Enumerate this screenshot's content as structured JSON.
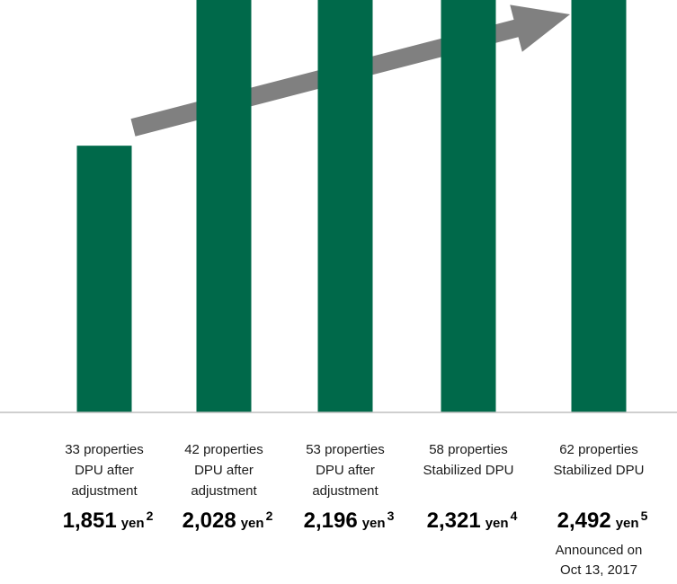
{
  "chart_data": {
    "type": "bar",
    "categories": [
      [
        "33 properties",
        "DPU after",
        "adjustment"
      ],
      [
        "42 properties",
        "DPU after",
        "adjustment"
      ],
      [
        "53 properties",
        "DPU after",
        "adjustment"
      ],
      [
        "58 properties",
        "Stabilized DPU"
      ],
      [
        "62 properties",
        "Stabilized DPU"
      ]
    ],
    "values": [
      1851,
      2028,
      2196,
      2321,
      2492
    ],
    "value_labels": [
      "1,851",
      "2,028",
      "2,196",
      "2,321",
      "2,492"
    ],
    "unit": "yen",
    "footnotes": [
      "2",
      "2",
      "3",
      "4",
      "5"
    ],
    "annotations": [
      {
        "category_index": 4,
        "lines": [
          "Announced on",
          "Oct 13, 2017"
        ]
      }
    ],
    "trend_arrow": true,
    "colors": {
      "bar": "#00694A",
      "arrow": "#808080",
      "axis": "#bfbfbf"
    },
    "title": "",
    "xlabel": "",
    "ylabel": "",
    "grid": false
  }
}
